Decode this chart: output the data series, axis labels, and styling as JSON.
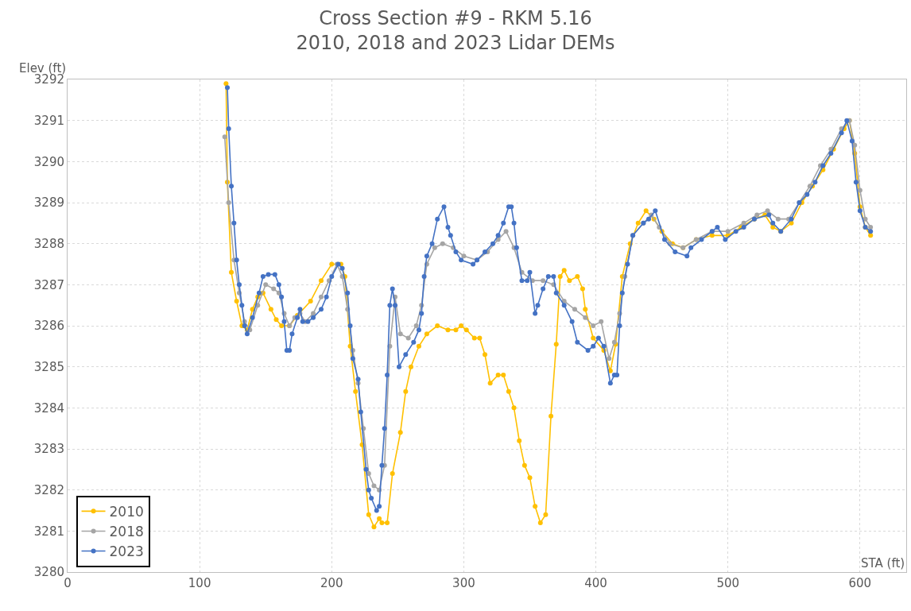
{
  "chart_data": {
    "type": "line",
    "title": "Cross Section #9 - RKM 5.16\n2010, 2018 and 2023 Lidar DEMs",
    "xlabel": "STA (ft)",
    "ylabel": "Elev (ft)",
    "xlim": [
      0,
      635
    ],
    "xticks": [
      0,
      100,
      200,
      300,
      400,
      500,
      600
    ],
    "ylim": [
      3280,
      3292
    ],
    "yticks": [
      3280,
      3281,
      3282,
      3283,
      3284,
      3285,
      3286,
      3287,
      3288,
      3289,
      3290,
      3291,
      3292
    ],
    "grid": true,
    "legend": "bottom left",
    "marker": "circle",
    "line_style": "solid",
    "series": [
      {
        "name": "2010",
        "color": "#ffc000",
        "x": [
          120,
          121,
          124,
          128,
          132,
          136,
          140,
          144,
          148,
          154,
          158,
          162,
          168,
          174,
          184,
          192,
          200,
          207,
          210,
          214,
          218,
          223,
          228,
          232,
          236,
          238,
          242,
          246,
          252,
          256,
          260,
          266,
          272,
          280,
          288,
          294,
          298,
          302,
          308,
          312,
          316,
          320,
          326,
          330,
          334,
          338,
          342,
          346,
          350,
          354,
          358,
          362,
          366,
          370,
          373,
          376,
          380,
          386,
          390,
          392,
          398,
          406,
          411,
          415,
          420,
          426,
          432,
          438,
          444,
          450,
          458,
          466,
          476,
          488,
          500,
          510,
          520,
          528,
          534,
          540,
          548,
          556,
          564,
          572,
          580,
          588,
          592,
          596,
          600,
          604,
          608
        ],
        "values": [
          3291.9,
          3289.5,
          3287.3,
          3286.6,
          3286.0,
          3285.9,
          3286.4,
          3286.7,
          3286.8,
          3286.4,
          3286.15,
          3286.0,
          3286.0,
          3286.25,
          3286.6,
          3287.1,
          3287.5,
          3287.5,
          3287.2,
          3285.5,
          3284.4,
          3283.1,
          3281.4,
          3281.1,
          3281.3,
          3281.2,
          3281.2,
          3282.4,
          3283.4,
          3284.4,
          3285.0,
          3285.5,
          3285.8,
          3286.0,
          3285.9,
          3285.9,
          3286.0,
          3285.9,
          3285.7,
          3285.7,
          3285.3,
          3284.6,
          3284.8,
          3284.8,
          3284.4,
          3284.0,
          3283.2,
          3282.6,
          3282.3,
          3281.6,
          3281.2,
          3281.4,
          3283.8,
          3285.55,
          3287.2,
          3287.35,
          3287.1,
          3287.2,
          3286.9,
          3286.4,
          3285.7,
          3285.4,
          3284.9,
          3285.55,
          3287.2,
          3288.0,
          3288.5,
          3288.8,
          3288.6,
          3288.3,
          3288.0,
          3287.9,
          3288.1,
          3288.2,
          3288.2,
          3288.4,
          3288.6,
          3288.7,
          3288.4,
          3288.3,
          3288.5,
          3289.0,
          3289.4,
          3289.8,
          3290.3,
          3290.8,
          3291.0,
          3290.2,
          3288.9,
          3288.4,
          3288.2
        ]
      },
      {
        "name": "2018",
        "color": "#a5a5a5",
        "x": [
          119,
          122,
          126,
          130,
          134,
          138,
          144,
          150,
          156,
          160,
          164,
          168,
          172,
          176,
          180,
          186,
          192,
          198,
          204,
          208,
          212,
          216,
          220,
          224,
          228,
          232,
          236,
          240,
          244,
          248,
          252,
          258,
          264,
          268,
          272,
          278,
          284,
          292,
          300,
          310,
          318,
          326,
          332,
          338,
          344,
          352,
          360,
          368,
          376,
          384,
          392,
          398,
          404,
          410,
          414,
          418,
          422,
          428,
          436,
          442,
          448,
          456,
          466,
          476,
          488,
          500,
          512,
          522,
          530,
          538,
          546,
          554,
          562,
          570,
          578,
          586,
          592,
          596,
          600,
          604,
          608
        ],
        "values": [
          3290.6,
          3289.0,
          3287.6,
          3286.8,
          3286.1,
          3285.9,
          3286.5,
          3287.0,
          3286.9,
          3286.8,
          3286.3,
          3286.0,
          3286.2,
          3286.3,
          3286.1,
          3286.3,
          3286.7,
          3287.1,
          3287.5,
          3287.2,
          3286.4,
          3285.4,
          3284.6,
          3283.5,
          3282.4,
          3282.1,
          3282.0,
          3282.6,
          3285.5,
          3286.7,
          3285.8,
          3285.7,
          3286.0,
          3286.5,
          3287.5,
          3287.9,
          3288.0,
          3287.9,
          3287.7,
          3287.6,
          3287.8,
          3288.1,
          3288.3,
          3287.9,
          3287.3,
          3287.1,
          3287.1,
          3287.0,
          3286.6,
          3286.4,
          3286.2,
          3286.0,
          3286.1,
          3285.2,
          3285.6,
          3286.3,
          3287.2,
          3288.2,
          3288.5,
          3288.7,
          3288.4,
          3288.0,
          3287.9,
          3288.1,
          3288.3,
          3288.3,
          3288.5,
          3288.7,
          3288.8,
          3288.6,
          3288.6,
          3289.0,
          3289.4,
          3289.9,
          3290.3,
          3290.8,
          3291.0,
          3290.4,
          3289.3,
          3288.6,
          3288.4
        ]
      },
      {
        "name": "2023",
        "color": "#4472c4",
        "x": [
          121,
          122,
          124,
          126,
          128,
          130,
          132,
          134,
          136,
          140,
          145,
          148,
          152,
          157,
          160,
          162,
          164,
          166,
          168,
          170,
          174,
          176,
          178,
          182,
          186,
          192,
          196,
          200,
          205,
          208,
          212,
          214,
          216,
          220,
          222,
          226,
          228,
          230,
          234,
          236,
          238,
          240,
          242,
          244,
          246,
          248,
          251,
          256,
          262,
          266,
          268,
          270,
          272,
          276,
          280,
          285,
          288,
          290,
          294,
          298,
          307,
          310,
          316,
          322,
          326,
          330,
          334,
          336,
          338,
          340,
          344,
          348,
          350,
          354,
          356,
          360,
          364,
          368,
          370,
          376,
          382,
          386,
          394,
          398,
          402,
          406,
          411,
          414,
          416,
          418,
          420,
          424,
          428,
          436,
          440,
          445,
          452,
          460,
          469,
          472,
          480,
          488,
          492,
          498,
          506,
          512,
          520,
          531,
          534,
          540,
          548,
          554,
          560,
          566,
          572,
          578,
          586,
          590,
          594,
          597,
          600,
          604,
          608
        ],
        "values": [
          3291.8,
          3290.8,
          3289.4,
          3288.5,
          3287.6,
          3287.0,
          3286.5,
          3286.0,
          3285.8,
          3286.2,
          3286.8,
          3287.2,
          3287.25,
          3287.25,
          3287.0,
          3286.7,
          3286.1,
          3285.4,
          3285.4,
          3285.8,
          3286.2,
          3286.4,
          3286.1,
          3286.1,
          3286.2,
          3286.4,
          3286.7,
          3287.2,
          3287.5,
          3287.4,
          3286.8,
          3286.0,
          3285.2,
          3284.7,
          3283.9,
          3282.5,
          3282.0,
          3281.8,
          3281.5,
          3281.6,
          3282.6,
          3283.5,
          3284.8,
          3286.5,
          3286.9,
          3286.5,
          3285.0,
          3285.3,
          3285.6,
          3285.9,
          3286.3,
          3287.2,
          3287.7,
          3288.0,
          3288.6,
          3288.9,
          3288.4,
          3288.2,
          3287.8,
          3287.6,
          3287.5,
          3287.6,
          3287.8,
          3288.0,
          3288.2,
          3288.5,
          3288.9,
          3288.9,
          3288.5,
          3287.9,
          3287.1,
          3287.1,
          3287.3,
          3286.3,
          3286.5,
          3286.9,
          3287.2,
          3287.2,
          3286.8,
          3286.5,
          3286.1,
          3285.6,
          3285.4,
          3285.5,
          3285.7,
          3285.5,
          3284.6,
          3284.8,
          3284.8,
          3286.0,
          3286.8,
          3287.5,
          3288.2,
          3288.5,
          3288.6,
          3288.8,
          3288.1,
          3287.8,
          3287.7,
          3287.9,
          3288.1,
          3288.3,
          3288.4,
          3288.1,
          3288.3,
          3288.4,
          3288.6,
          3288.7,
          3288.5,
          3288.3,
          3288.6,
          3289.0,
          3289.2,
          3289.5,
          3289.9,
          3290.2,
          3290.7,
          3291.0,
          3290.5,
          3289.5,
          3288.8,
          3288.4,
          3288.3
        ]
      }
    ]
  }
}
